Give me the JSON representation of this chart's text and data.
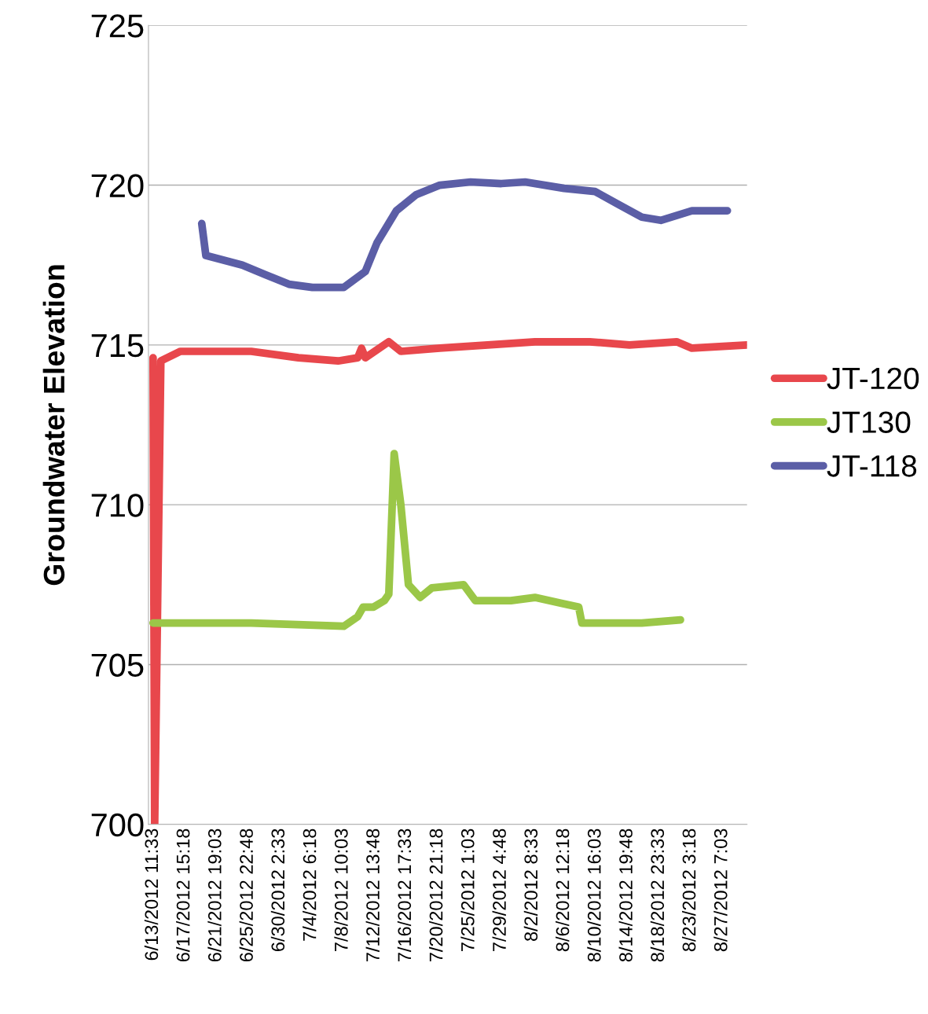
{
  "chart_data": {
    "type": "line",
    "ylabel": "Groundwater Elevation",
    "xlim": [
      "2012-06-12T21:00",
      "2012-08-30T13:00"
    ],
    "ylim": [
      700,
      725
    ],
    "yticks": [
      700,
      705,
      710,
      715,
      720,
      725
    ],
    "xticks": [
      {
        "value": "2012-06-13T11:33",
        "label": "6/13/2012 11:33"
      },
      {
        "value": "2012-06-17T15:18",
        "label": "6/17/2012 15:18"
      },
      {
        "value": "2012-06-21T19:03",
        "label": "6/21/2012 19:03"
      },
      {
        "value": "2012-06-25T22:48",
        "label": "6/25/2012 22:48"
      },
      {
        "value": "2012-06-30T02:33",
        "label": "6/30/2012 2:33"
      },
      {
        "value": "2012-07-04T06:18",
        "label": "7/4/2012 6:18"
      },
      {
        "value": "2012-07-08T10:03",
        "label": "7/8/2012 10:03"
      },
      {
        "value": "2012-07-12T13:48",
        "label": "7/12/2012 13:48"
      },
      {
        "value": "2012-07-16T17:33",
        "label": "7/16/2012 17:33"
      },
      {
        "value": "2012-07-20T21:18",
        "label": "7/20/2012 21:18"
      },
      {
        "value": "2012-07-25T01:03",
        "label": "7/25/2012 1:03"
      },
      {
        "value": "2012-07-29T04:48",
        "label": "7/29/2012 4:48"
      },
      {
        "value": "2012-08-02T08:33",
        "label": "8/2/2012 8:33"
      },
      {
        "value": "2012-08-06T12:18",
        "label": "8/6/2012 12:18"
      },
      {
        "value": "2012-08-10T16:03",
        "label": "8/10/2012 16:03"
      },
      {
        "value": "2012-08-14T19:48",
        "label": "8/14/2012 19:48"
      },
      {
        "value": "2012-08-18T23:33",
        "label": "8/18/2012 23:33"
      },
      {
        "value": "2012-08-23T03:18",
        "label": "8/23/2012 3:18"
      },
      {
        "value": "2012-08-27T07:03",
        "label": "8/27/2012 7:03"
      }
    ],
    "grid": "y",
    "legend": "right",
    "marker": "none",
    "line_style": "solid",
    "series": [
      {
        "name": "JT-120",
        "color": "#e8474c",
        "x": [
          "2012-06-13T11:33",
          "2012-06-13T16:30",
          "2012-06-14T12:00",
          "2012-06-17T02:00",
          "2012-06-20T04:00",
          "2012-06-26T09:00",
          "2012-07-02T14:00",
          "2012-07-07T19:00",
          "2012-07-10T09:00",
          "2012-07-10T21:00",
          "2012-07-11T09:00",
          "2012-07-14T11:00",
          "2012-07-16T01:00",
          "2012-07-21T04:00",
          "2012-07-27T11:00",
          "2012-08-02T16:00",
          "2012-08-09T21:00",
          "2012-08-15T02:00",
          "2012-08-21T07:00",
          "2012-08-23T07:00",
          "2012-08-30T13:00"
        ],
        "values": [
          714.6,
          700,
          714.5,
          714.8,
          714.8,
          714.8,
          714.6,
          714.5,
          714.6,
          714.9,
          714.6,
          715.1,
          714.8,
          714.9,
          715.0,
          715.1,
          715.1,
          715.0,
          715.1,
          714.9,
          715.0
        ]
      },
      {
        "name": "JT130",
        "color": "#9bc748",
        "x": [
          "2012-06-13T11:33",
          "2012-06-26T09:00",
          "2012-07-08T13:00",
          "2012-07-10T09:00",
          "2012-07-11T02:00",
          "2012-07-12T11:00",
          "2012-07-13T21:00",
          "2012-07-14T11:00",
          "2012-07-15T04:00",
          "2012-07-16T01:00",
          "2012-07-17T01:00",
          "2012-07-18T14:00",
          "2012-07-20T03:00",
          "2012-07-24T07:00",
          "2012-07-25T20:00",
          "2012-07-30T12:00",
          "2012-08-02T16:00",
          "2012-08-06T12:00",
          "2012-08-08T10:00",
          "2012-08-08T20:00",
          "2012-08-15T02:00",
          "2012-08-16T17:00",
          "2012-08-21T19:00"
        ],
        "values": [
          706.3,
          706.3,
          706.2,
          706.5,
          706.8,
          706.8,
          707.0,
          707.2,
          711.6,
          710.0,
          707.5,
          707.1,
          707.4,
          707.5,
          707.0,
          707.0,
          707.1,
          706.9,
          706.8,
          706.3,
          706.3,
          706.3,
          706.4
        ]
      },
      {
        "name": "JT-118",
        "color": "#5b5ea6",
        "x": [
          "2012-06-19T21:00",
          "2012-06-20T10:00",
          "2012-06-25T05:00",
          "2012-06-28T06:00",
          "2012-07-01T08:00",
          "2012-07-04T10:00",
          "2012-07-08T13:00",
          "2012-07-11T09:00",
          "2012-07-12T22:00",
          "2012-07-15T11:00",
          "2012-07-18T01:00",
          "2012-07-21T04:00",
          "2012-07-25T05:00",
          "2012-07-29T06:00",
          "2012-08-01T09:00",
          "2012-08-06T12:00",
          "2012-08-10T14:00",
          "2012-08-13T15:00",
          "2012-08-16T17:00",
          "2012-08-19T05:00",
          "2012-08-23T07:00",
          "2012-08-27T23:00"
        ],
        "values": [
          718.8,
          717.8,
          717.5,
          717.2,
          716.9,
          716.8,
          716.8,
          717.3,
          718.2,
          719.2,
          719.7,
          720.0,
          720.1,
          720.05,
          720.1,
          719.9,
          719.8,
          719.4,
          719.0,
          718.9,
          719.2,
          719.2
        ]
      }
    ]
  }
}
